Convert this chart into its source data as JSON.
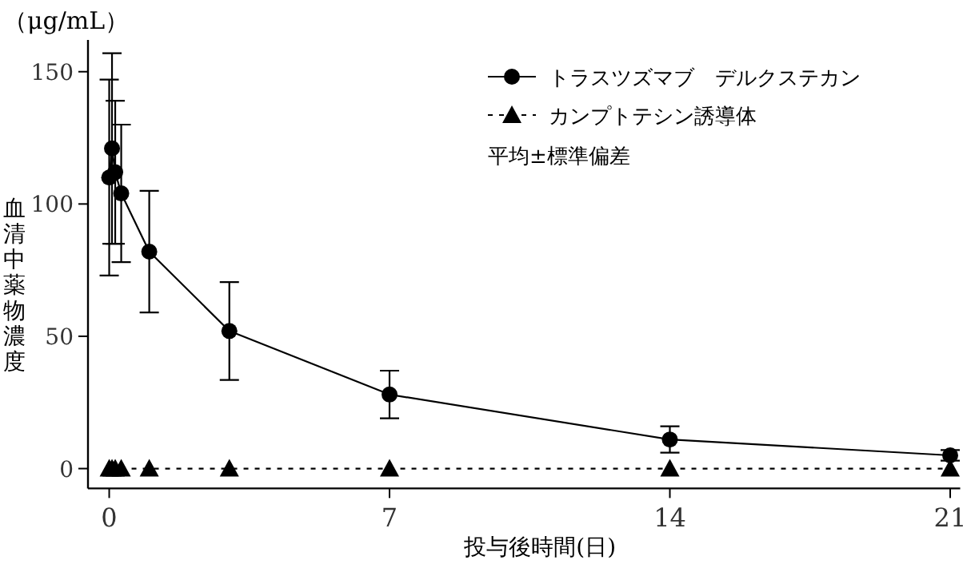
{
  "chart_data": {
    "type": "line",
    "xlabel": "投与後時間(日)",
    "ylabel": "血清中薬物濃度",
    "annotations": [
      "（μg/mL）",
      "平均±標準偏差"
    ],
    "xlim": [
      -0.53,
      21.25
    ],
    "ylim": [
      -7.5,
      162
    ],
    "xticks": [
      0,
      7,
      14,
      21
    ],
    "yticks": [
      0,
      50,
      100,
      150
    ],
    "legend": "top right",
    "grid": false,
    "series": [
      {
        "name": "トラスツズマブ　デルクステカン",
        "color": "#000000",
        "marker": "circle",
        "line_style": "solid",
        "x": [
          0,
          0.07,
          0.15,
          0.3,
          1,
          3,
          7,
          14,
          21
        ],
        "values": [
          110,
          121,
          112,
          104,
          82,
          52,
          28,
          11,
          5
        ],
        "errors": [
          37,
          36,
          27,
          26,
          23,
          18.5,
          9,
          5,
          2
        ]
      },
      {
        "name": "カンプトテシン誘導体",
        "color": "#000000",
        "marker": "triangle",
        "line_style": "dotted",
        "x": [
          0,
          0.07,
          0.15,
          0.3,
          1,
          3,
          7,
          14,
          21
        ],
        "values": [
          0,
          0,
          0,
          0,
          0,
          0,
          0,
          0,
          0
        ]
      }
    ]
  }
}
